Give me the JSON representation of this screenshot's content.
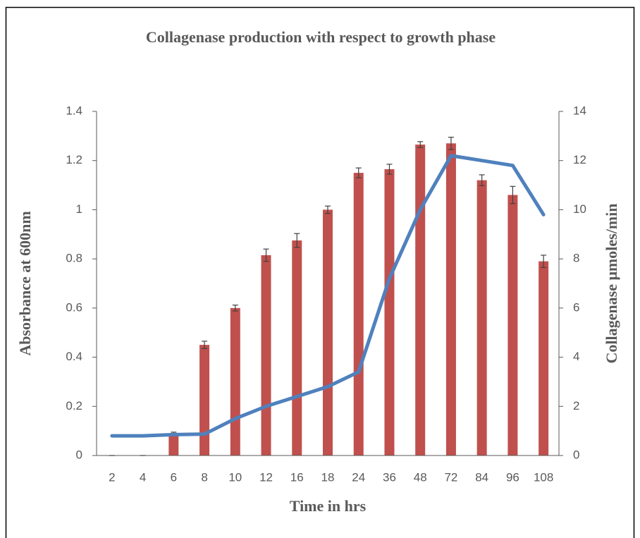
{
  "chart_data": {
    "type": "combo",
    "title": "Collagenase production with respect to growth phase",
    "x_label": "Time in hrs",
    "y_label": "Absorbance at 600nm",
    "y2_label": "Collagenase μmoles/min",
    "categories": [
      "2",
      "4",
      "6",
      "8",
      "10",
      "12",
      "16",
      "18",
      "24",
      "36",
      "48",
      "72",
      "84",
      "96",
      "108"
    ],
    "series": [
      {
        "type": "bar",
        "color": "#c0504d",
        "values": [
          0,
          0,
          0.09,
          0.45,
          0.6,
          0.815,
          0.875,
          1.0,
          1.15,
          1.165,
          1.265,
          1.27,
          1.12,
          1.06,
          0.79
        ],
        "errors": [
          0,
          0,
          0.005,
          0.015,
          0.012,
          0.025,
          0.028,
          0.015,
          0.02,
          0.02,
          0.012,
          0.025,
          0.022,
          0.035,
          0.025
        ]
      },
      {
        "type": "line",
        "color": "#4f81bd",
        "axis": "y2",
        "values": [
          0.8,
          0.8,
          0.85,
          0.87,
          1.5,
          2.0,
          2.4,
          2.8,
          3.4,
          7.2,
          10.0,
          12.2,
          12.0,
          11.8,
          9.8
        ]
      }
    ],
    "ylim": [
      0,
      1.4
    ],
    "yticks": [
      0,
      0.2,
      0.4,
      0.6,
      0.8,
      1,
      1.2,
      1.4
    ],
    "y2lim": [
      0,
      14
    ],
    "y2ticks": [
      0,
      2,
      4,
      6,
      8,
      10,
      12,
      14
    ]
  }
}
